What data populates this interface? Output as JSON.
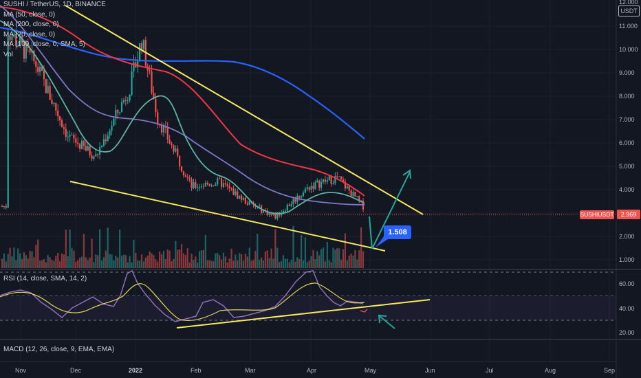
{
  "legend": {
    "title": "SUSHI / TetherUS, 1D, BINANCE",
    "lines": [
      "MA (50, close, 0)",
      "MA (200, close, 0)",
      "MA (20, close, 0)",
      "MA (100, close, 0, SMA, 5)",
      "Vol"
    ]
  },
  "rsi_label": "RSI (14, close, SMA, 14, 2)",
  "macd_label": "MACD (12, 26, close, 9, EMA, EMA)",
  "price_axis": {
    "currency": "USDT",
    "ticks": [
      "12.000",
      "11.000",
      "10.000",
      "9.000",
      "8.000",
      "7.000",
      "6.000",
      "5.000",
      "4.000",
      "3.000",
      "2.000",
      "1.000"
    ]
  },
  "rsi_axis": {
    "ticks": [
      "60.00",
      "40.00",
      "20.00"
    ]
  },
  "time_axis": {
    "labels": [
      "Nov",
      "Dec",
      "2022",
      "Feb",
      "Mar",
      "Apr",
      "May",
      "Jun",
      "Jul",
      "Aug",
      "Sep"
    ]
  },
  "symbol_tag": {
    "name": "SUSHIUSDT",
    "value": "2.969"
  },
  "target_label": "1.508",
  "colors": {
    "background": "#131722",
    "up": "#26a69a",
    "down": "#ef5350",
    "ma50": "#f23645",
    "ma200": "#2962ff",
    "ma20": "#5fb3a1",
    "ma100": "#7e78c8",
    "trendline": "#f5e85f",
    "arrow": "#26a69a",
    "rsi_line": "#8e6fb8",
    "rsi_ma": "#f5e85f",
    "label_blue": "#2962ff"
  },
  "chart_data": {
    "type": "candlestick",
    "x": [
      "2021-11-01",
      "2021-11-15",
      "2021-12-01",
      "2021-12-15",
      "2022-01-01",
      "2022-01-07",
      "2022-01-15",
      "2022-02-01",
      "2022-02-15",
      "2022-03-01",
      "2022-03-15",
      "2022-04-01",
      "2022-04-15",
      "2022-04-28"
    ],
    "close": [
      11.0,
      9.5,
      6.4,
      5.5,
      8.5,
      10.6,
      7.2,
      4.2,
      4.4,
      3.5,
      2.9,
      4.2,
      4.6,
      3.35
    ],
    "last_close": 2.969,
    "projected_target": 1.508,
    "ylim": [
      0.6,
      12.2
    ],
    "series": [
      {
        "name": "MA (50, close, 0)",
        "x": [
          "2021-11-01",
          "2022-01-01",
          "2022-02-15",
          "2022-03-15",
          "2022-04-01",
          "2022-04-28"
        ],
        "values": [
          11.5,
          8.6,
          6.0,
          4.9,
          4.5,
          3.6
        ]
      },
      {
        "name": "MA (200, close, 0)",
        "x": [
          "2021-11-01",
          "2022-01-01",
          "2022-02-15",
          "2022-03-15",
          "2022-04-01",
          "2022-04-28"
        ],
        "values": [
          11.0,
          9.5,
          9.3,
          8.5,
          7.8,
          6.2
        ]
      },
      {
        "name": "MA (20, close, 0)",
        "x": [
          "2021-11-01",
          "2021-12-15",
          "2022-01-10",
          "2022-02-15",
          "2022-03-15",
          "2022-04-15",
          "2022-04-28"
        ],
        "values": [
          10.5,
          5.5,
          8.0,
          4.7,
          3.0,
          4.2,
          3.4
        ]
      },
      {
        "name": "MA (100, close, 0, SMA, 5)",
        "x": [
          "2021-11-01",
          "2021-12-15",
          "2022-01-15",
          "2022-02-15",
          "2022-03-15",
          "2022-04-15",
          "2022-04-28"
        ],
        "values": [
          11.7,
          8.6,
          7.0,
          5.0,
          3.8,
          3.4,
          3.2
        ]
      }
    ],
    "rsi": {
      "ylim": [
        10,
        80
      ],
      "bands": [
        70,
        50,
        30
      ],
      "values": [
        52,
        55,
        45,
        60,
        75,
        55,
        40,
        30,
        45,
        35,
        44,
        72,
        55,
        48,
        37
      ]
    }
  }
}
